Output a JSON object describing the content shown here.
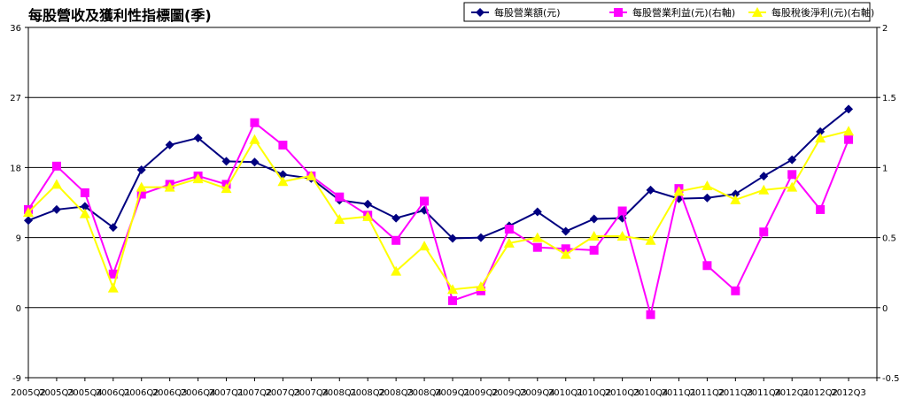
{
  "chart_data": {
    "type": "line",
    "title": "每股營收及獲利性指標圖(季)",
    "categories": [
      "2005Q2",
      "2005Q3",
      "2005Q4",
      "2006Q1",
      "2006Q2",
      "2006Q3",
      "2006Q4",
      "2007Q1",
      "2007Q2",
      "2007Q3",
      "2007Q4",
      "2008Q1",
      "2008Q2",
      "2008Q3",
      "2008Q4",
      "2009Q1",
      "2009Q2",
      "2009Q3",
      "2009Q4",
      "2010Q1",
      "2010Q2",
      "2010Q3",
      "2010Q4",
      "2011Q1",
      "2011Q2",
      "2011Q3",
      "2011Q4",
      "2012Q1",
      "2012Q2",
      "2012Q3"
    ],
    "y_left": {
      "min": -9,
      "max": 36,
      "ticks": [
        "-9",
        "0",
        "9",
        "18",
        "27",
        "36"
      ]
    },
    "y_right": {
      "min": -0.5,
      "max": 2,
      "ticks": [
        "-0.5",
        "0",
        "0.5",
        "1",
        "1.5",
        "2"
      ]
    },
    "grid": "horizontal",
    "legend_position": "top-right",
    "series": [
      {
        "name": "每股營業額(元)",
        "axis": "left",
        "color": "#000080",
        "marker": "diamond",
        "values": [
          11.2,
          12.6,
          13.0,
          10.3,
          17.7,
          20.9,
          21.8,
          18.8,
          18.7,
          17.1,
          16.6,
          13.8,
          13.3,
          11.5,
          12.5,
          8.9,
          9.0,
          10.5,
          12.3,
          9.8,
          11.4,
          11.5,
          15.1,
          14.0,
          14.1,
          14.6,
          16.9,
          19.0,
          22.6,
          25.5
        ]
      },
      {
        "name": "每股營業利益(元)(右軸)",
        "axis": "right",
        "color": "#FF00FF",
        "marker": "square",
        "values": [
          0.7,
          1.01,
          0.82,
          0.24,
          0.81,
          0.88,
          0.94,
          0.88,
          1.32,
          1.16,
          0.94,
          0.79,
          0.66,
          0.48,
          0.76,
          0.05,
          0.12,
          0.56,
          0.43,
          0.42,
          0.41,
          0.69,
          -0.05,
          0.85,
          0.3,
          0.12,
          0.54,
          0.95,
          0.7,
          1.2
        ]
      },
      {
        "name": "每股稅後淨利(元)(右軸)",
        "axis": "right",
        "color": "#FFFF00",
        "marker": "triangle",
        "values": [
          0.68,
          0.88,
          0.67,
          0.14,
          0.86,
          0.86,
          0.92,
          0.85,
          1.2,
          0.9,
          0.94,
          0.63,
          0.65,
          0.26,
          0.44,
          0.13,
          0.15,
          0.46,
          0.5,
          0.38,
          0.51,
          0.51,
          0.48,
          0.83,
          0.87,
          0.77,
          0.84,
          0.86,
          1.21,
          1.26
        ]
      }
    ]
  }
}
